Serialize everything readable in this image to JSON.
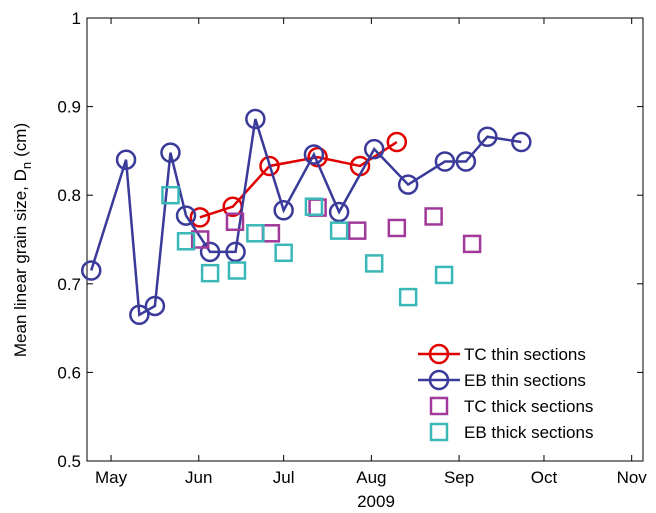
{
  "chart_data": {
    "type": "scatter",
    "ylabel": "Mean linear grain size, D",
    "ylabel_subscript": "n",
    "ylabel_unit": "(cm)",
    "xlabel": "2009",
    "xlim": [
      112.5,
      309
    ],
    "ylim": [
      0.5,
      1
    ],
    "xticks": [
      {
        "value": 121,
        "label": "May"
      },
      {
        "value": 152,
        "label": "Jun"
      },
      {
        "value": 182,
        "label": "Jul"
      },
      {
        "value": 213,
        "label": "Aug"
      },
      {
        "value": 244,
        "label": "Sep"
      },
      {
        "value": 274,
        "label": "Oct"
      },
      {
        "value": 305,
        "label": "Nov"
      }
    ],
    "yticks": [
      0.5,
      0.6,
      0.7,
      0.8,
      0.9,
      1
    ],
    "legend": "lower right",
    "series": [
      {
        "name": "TC thin sections",
        "color": "#e00000",
        "marker": "circle",
        "line": true,
        "x": [
          152.4,
          164,
          177,
          194,
          209,
          222
        ],
        "values": [
          0.775,
          0.787,
          0.833,
          0.843,
          0.833,
          0.86
        ]
      },
      {
        "name": "EB thin sections",
        "color": "#3a3a9a",
        "marker": "circle",
        "line": true,
        "x": [
          114,
          126.3,
          131,
          136.5,
          142,
          147.5,
          156,
          165,
          172,
          182,
          192.7,
          201.6,
          214,
          226,
          239,
          246.4,
          254,
          266
        ],
        "values": [
          0.715,
          0.84,
          0.665,
          0.675,
          0.848,
          0.777,
          0.736,
          0.736,
          0.886,
          0.783,
          0.846,
          0.781,
          0.852,
          0.812,
          0.838,
          0.838,
          0.866,
          0.86
        ]
      },
      {
        "name": "TC thick sections",
        "color": "#a0399a",
        "marker": "square",
        "line": false,
        "x": [
          152.5,
          164.8,
          177.5,
          194,
          208,
          222,
          235,
          248.6
        ],
        "values": [
          0.75,
          0.77,
          0.757,
          0.786,
          0.76,
          0.763,
          0.776,
          0.745
        ]
      },
      {
        "name": "EB thick sections",
        "color": "#3ab8b8",
        "marker": "square",
        "line": false,
        "x": [
          142,
          147.5,
          156,
          165.5,
          172,
          182,
          192.7,
          201.6,
          214,
          226,
          238.7
        ],
        "values": [
          0.8,
          0.748,
          0.712,
          0.715,
          0.757,
          0.735,
          0.787,
          0.76,
          0.723,
          0.685,
          0.71
        ]
      }
    ]
  }
}
